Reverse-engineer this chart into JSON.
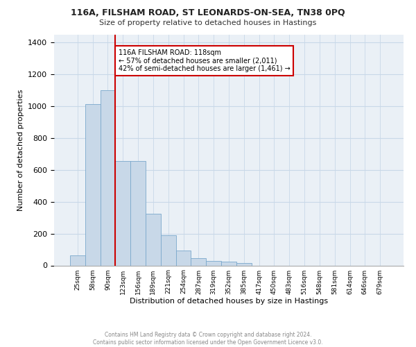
{
  "title1": "116A, FILSHAM ROAD, ST LEONARDS-ON-SEA, TN38 0PQ",
  "title2": "Size of property relative to detached houses in Hastings",
  "xlabel": "Distribution of detached houses by size in Hastings",
  "ylabel": "Number of detached properties",
  "footer1": "Contains HM Land Registry data © Crown copyright and database right 2024.",
  "footer2": "Contains public sector information licensed under the Open Government Licence v3.0.",
  "bar_color": "#c8d8e8",
  "bar_edge_color": "#7aa8cc",
  "annotation_box_color": "#cc0000",
  "annotation_line_color": "#cc0000",
  "categories": [
    "25sqm",
    "58sqm",
    "90sqm",
    "123sqm",
    "156sqm",
    "189sqm",
    "221sqm",
    "254sqm",
    "287sqm",
    "319sqm",
    "352sqm",
    "385sqm",
    "417sqm",
    "450sqm",
    "483sqm",
    "516sqm",
    "548sqm",
    "581sqm",
    "614sqm",
    "646sqm",
    "679sqm"
  ],
  "values": [
    65,
    1015,
    1100,
    655,
    655,
    325,
    190,
    95,
    45,
    30,
    25,
    15,
    0,
    0,
    0,
    0,
    0,
    0,
    0,
    0,
    0
  ],
  "property_label": "116A FILSHAM ROAD: 118sqm",
  "pct_smaller": "57% of detached houses are smaller (2,011)",
  "pct_larger": "42% of semi-detached houses are larger (1,461)",
  "vline_x": 2.5,
  "ylim": [
    0,
    1450
  ],
  "yticks": [
    0,
    200,
    400,
    600,
    800,
    1000,
    1200,
    1400
  ],
  "grid_color": "#c8d8e8",
  "background_color": "#eaf0f6"
}
